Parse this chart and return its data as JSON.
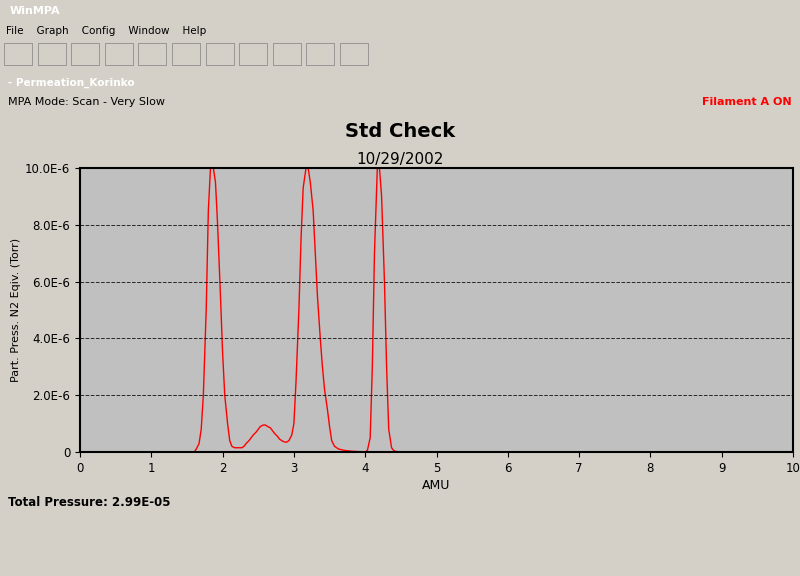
{
  "title_line1": "Std Check",
  "title_line2": "10/29/2002",
  "xlabel": "AMU",
  "ylabel": "Part. Press. N2 Eqiv. (Torr)",
  "xlim": [
    0,
    10
  ],
  "ylim": [
    0,
    1e-05
  ],
  "yticks": [
    0,
    2e-06,
    4e-06,
    6e-06,
    8e-06,
    1e-05
  ],
  "ytick_labels": [
    "0",
    "2.0E-6",
    "4.0E-6",
    "6.0E-6",
    "8.0E-6",
    "10.0E-6"
  ],
  "xticks": [
    0,
    1,
    2,
    3,
    4,
    5,
    6,
    7,
    8,
    9,
    10
  ],
  "bg_color": "#c0c0c0",
  "plot_bg_color": "#c0c0c0",
  "line_color": "#ff0000",
  "mode_text": "MPA Mode: Scan - Very Slow",
  "filament_text": "Filament A ON",
  "filament_color": "#ff0000",
  "total_pressure": "Total Pressure: 2.99E-05",
  "window_title": "Permeation_Korinko",
  "winmpa_title": "WinMPA",
  "titlebar_color": "#0a246a",
  "frame_color": "#d4d0c8",
  "x_data": [
    1.6,
    1.63,
    1.67,
    1.7,
    1.73,
    1.77,
    1.8,
    1.83,
    1.87,
    1.9,
    1.93,
    1.97,
    2.0,
    2.03,
    2.07,
    2.1,
    2.13,
    2.17,
    2.2,
    2.23,
    2.27,
    2.3,
    2.33,
    2.37,
    2.4,
    2.43,
    2.47,
    2.5,
    2.53,
    2.57,
    2.6,
    2.63,
    2.67,
    2.7,
    2.73,
    2.77,
    2.8,
    2.83,
    2.87,
    2.9,
    2.93,
    2.97,
    3.0,
    3.03,
    3.07,
    3.1,
    3.13,
    3.17,
    3.2,
    3.23,
    3.27,
    3.3,
    3.33,
    3.37,
    3.4,
    3.43,
    3.47,
    3.5,
    3.53,
    3.57,
    3.6,
    3.63,
    3.67,
    3.7,
    3.73,
    3.77,
    3.8,
    3.83,
    3.87,
    3.9,
    3.93,
    3.97,
    4.0,
    4.03,
    4.07,
    4.1,
    4.13,
    4.17,
    4.2,
    4.23,
    4.27,
    4.3,
    4.33,
    4.37,
    4.4,
    4.43,
    4.47,
    4.5
  ],
  "y_data": [
    0.0,
    1e-07,
    3e-07,
    8e-07,
    2e-06,
    5e-06,
    8.5e-06,
    1e-05,
    1e-05,
    9.5e-06,
    8e-06,
    5.5e-06,
    3.5e-06,
    2e-06,
    1e-06,
    4e-07,
    2e-07,
    1.5e-07,
    1.5e-07,
    1.5e-07,
    1.5e-07,
    2e-07,
    3e-07,
    4e-07,
    5e-07,
    6e-07,
    7e-07,
    8e-07,
    9e-07,
    9.5e-07,
    9.5e-07,
    9e-07,
    8.5e-07,
    7.5e-07,
    6.5e-07,
    5.5e-07,
    4.5e-07,
    4e-07,
    3.5e-07,
    3.5e-07,
    4e-07,
    6e-07,
    1e-06,
    2.5e-06,
    5e-06,
    7.5e-06,
    9.3e-06,
    1e-05,
    1e-05,
    9.5e-06,
    8.5e-06,
    7e-06,
    5.5e-06,
    4e-06,
    3e-06,
    2.2e-06,
    1.5e-06,
    9e-07,
    4e-07,
    2e-07,
    1.5e-07,
    1e-07,
    8e-08,
    6e-08,
    5e-08,
    4e-08,
    3e-08,
    2.5e-08,
    2e-08,
    1.5e-08,
    1.2e-08,
    1e-08,
    5e-09,
    5e-08,
    5e-07,
    3e-06,
    7e-06,
    1e-05,
    1e-05,
    9e-06,
    6e-06,
    3e-06,
    8e-07,
    1.5e-07,
    5e-08,
    2e-08,
    1e-08,
    5e-09
  ]
}
